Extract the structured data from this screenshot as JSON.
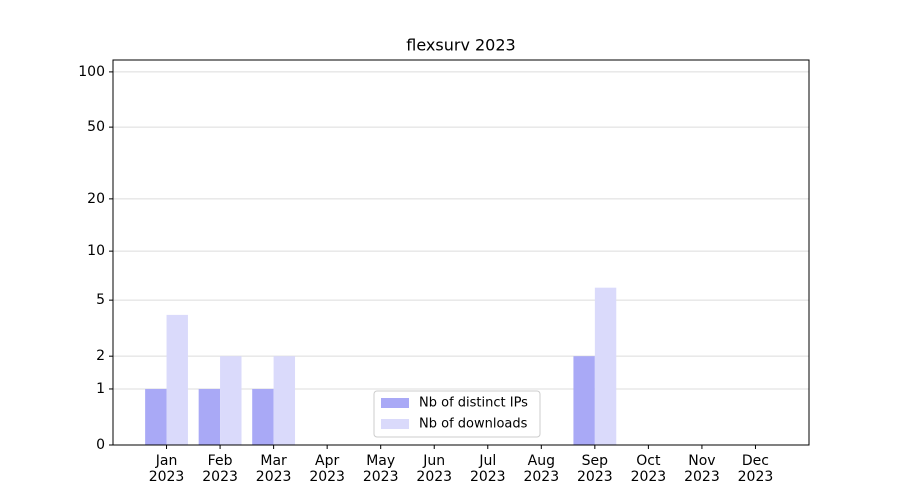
{
  "chart_data": {
    "type": "bar",
    "title": "flexsurv 2023",
    "scale": "log1p",
    "categories": [
      [
        "Jan",
        "2023"
      ],
      [
        "Feb",
        "2023"
      ],
      [
        "Mar",
        "2023"
      ],
      [
        "Apr",
        "2023"
      ],
      [
        "May",
        "2023"
      ],
      [
        "Jun",
        "2023"
      ],
      [
        "Jul",
        "2023"
      ],
      [
        "Aug",
        "2023"
      ],
      [
        "Sep",
        "2023"
      ],
      [
        "Oct",
        "2023"
      ],
      [
        "Nov",
        "2023"
      ],
      [
        "Dec",
        "2023"
      ]
    ],
    "series": [
      {
        "name": "Nb of distinct IPs",
        "color": "#a9a9f6",
        "values": [
          1,
          1,
          1,
          0,
          0,
          0,
          0,
          0,
          2,
          0,
          0,
          0
        ]
      },
      {
        "name": "Nb of downloads",
        "color": "#dadafb",
        "values": [
          4,
          2,
          2,
          0,
          0,
          0,
          0,
          0,
          6,
          0,
          0,
          0
        ]
      }
    ],
    "ylim": [
      0,
      116
    ],
    "yticks": [
      0,
      1,
      2,
      5,
      10,
      20,
      50,
      100
    ],
    "grid": true,
    "legend": "lower center"
  }
}
